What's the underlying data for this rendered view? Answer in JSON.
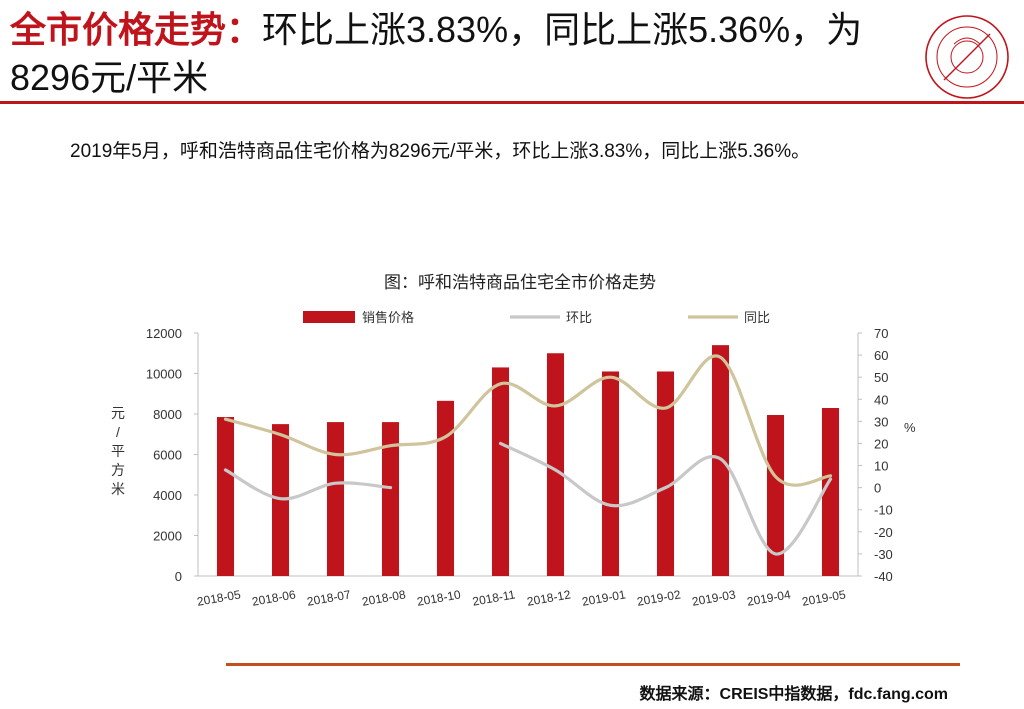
{
  "header": {
    "title_bold": "全市价格走势：",
    "title_rest": "环比上涨3.83%，同比上涨5.36%，为8296元/平米"
  },
  "summary": "2019年5月，呼和浩特商品住宅价格为8296元/平米，环比上涨3.83%，同比上涨5.36%。",
  "source": "数据来源：CREIS中指数据，fdc.fang.com",
  "colors": {
    "accent": "#c0141c",
    "bar": "#c0141c",
    "mom": "#c8c8c8",
    "yoy": "#cfc49b"
  },
  "chart_data": {
    "type": "bar",
    "title": "图：呼和浩特商品住宅全市价格走势",
    "categories": [
      "2018-05",
      "2018-06",
      "2018-07",
      "2018-08",
      "2018-10",
      "2018-11",
      "2018-12",
      "2019-01",
      "2019-02",
      "2019-03",
      "2019-04",
      "2019-05"
    ],
    "ylabel_left": "元/平方米",
    "ylabel_right": "%",
    "ylim_left": [
      0,
      12000
    ],
    "yticks_left": [
      "0",
      "2000",
      "4000",
      "6000",
      "8000",
      "10000",
      "12000"
    ],
    "ylim_right": [
      -40,
      70
    ],
    "yticks_right": [
      "-40",
      "-30",
      "-20",
      "-10",
      "0",
      "10",
      "20",
      "30",
      "40",
      "50",
      "60",
      "70"
    ],
    "legend": [
      "销售价格",
      "环比",
      "同比"
    ],
    "series": [
      {
        "name": "销售价格",
        "type": "bar",
        "axis": "left",
        "values": [
          7850,
          7500,
          7600,
          7600,
          8650,
          10300,
          11000,
          10100,
          10100,
          11400,
          7950,
          8296
        ]
      },
      {
        "name": "环比",
        "type": "line",
        "axis": "right",
        "values": [
          8,
          -5,
          2,
          0,
          null,
          20,
          8,
          -8,
          0,
          13,
          -30,
          3.83
        ]
      },
      {
        "name": "同比",
        "type": "line",
        "axis": "right",
        "values": [
          31,
          24,
          15,
          19,
          23,
          47,
          37,
          50,
          36,
          59,
          5,
          5.36
        ]
      }
    ]
  }
}
